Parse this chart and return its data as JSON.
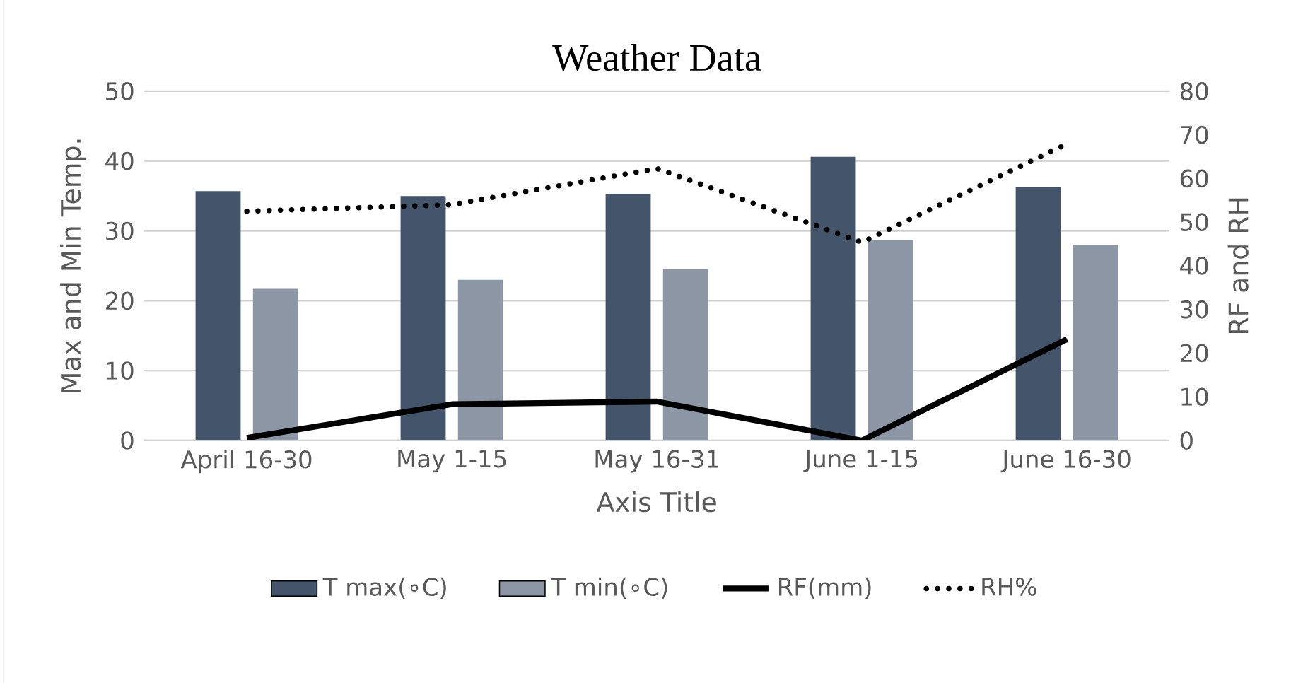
{
  "chart_data": {
    "type": "bar",
    "title": "Weather Data",
    "xlabel": "Axis Title",
    "ylabel": "Max and Min Temp.",
    "y2label": "RF and RH",
    "categories": [
      "April 16-30",
      "May 1-15",
      "May 16-31",
      "June 1-15",
      "June 16-30"
    ],
    "series": [
      {
        "name": "T max(∘C)",
        "color": "#44546a",
        "values": [
          35.7,
          35.0,
          35.3,
          40.6,
          36.3
        ]
      },
      {
        "name": "T min(∘C)",
        "color": "#8c96a5",
        "values": [
          21.7,
          23.0,
          24.5,
          28.7,
          28.0
        ]
      },
      {
        "name": "RF(mm)",
        "type": "line",
        "axis": "y2",
        "color": "#000000",
        "line_style": "solid",
        "values": [
          0.6,
          8.3,
          8.9,
          0,
          23.2
        ]
      },
      {
        "name": "RH%",
        "type": "line",
        "axis": "y2",
        "color": "#000000",
        "line_style": "dotted",
        "values": [
          52.5,
          54.0,
          62.3,
          45.4,
          67.9
        ]
      }
    ],
    "ylim": [
      0,
      50
    ],
    "yticks": [
      0,
      10,
      20,
      30,
      40,
      50
    ],
    "y2lim": [
      0,
      80
    ],
    "y2ticks": [
      0,
      10,
      20,
      30,
      40,
      50,
      60,
      70,
      80
    ],
    "grid": "y",
    "legend": "bottom",
    "marker": "none"
  }
}
